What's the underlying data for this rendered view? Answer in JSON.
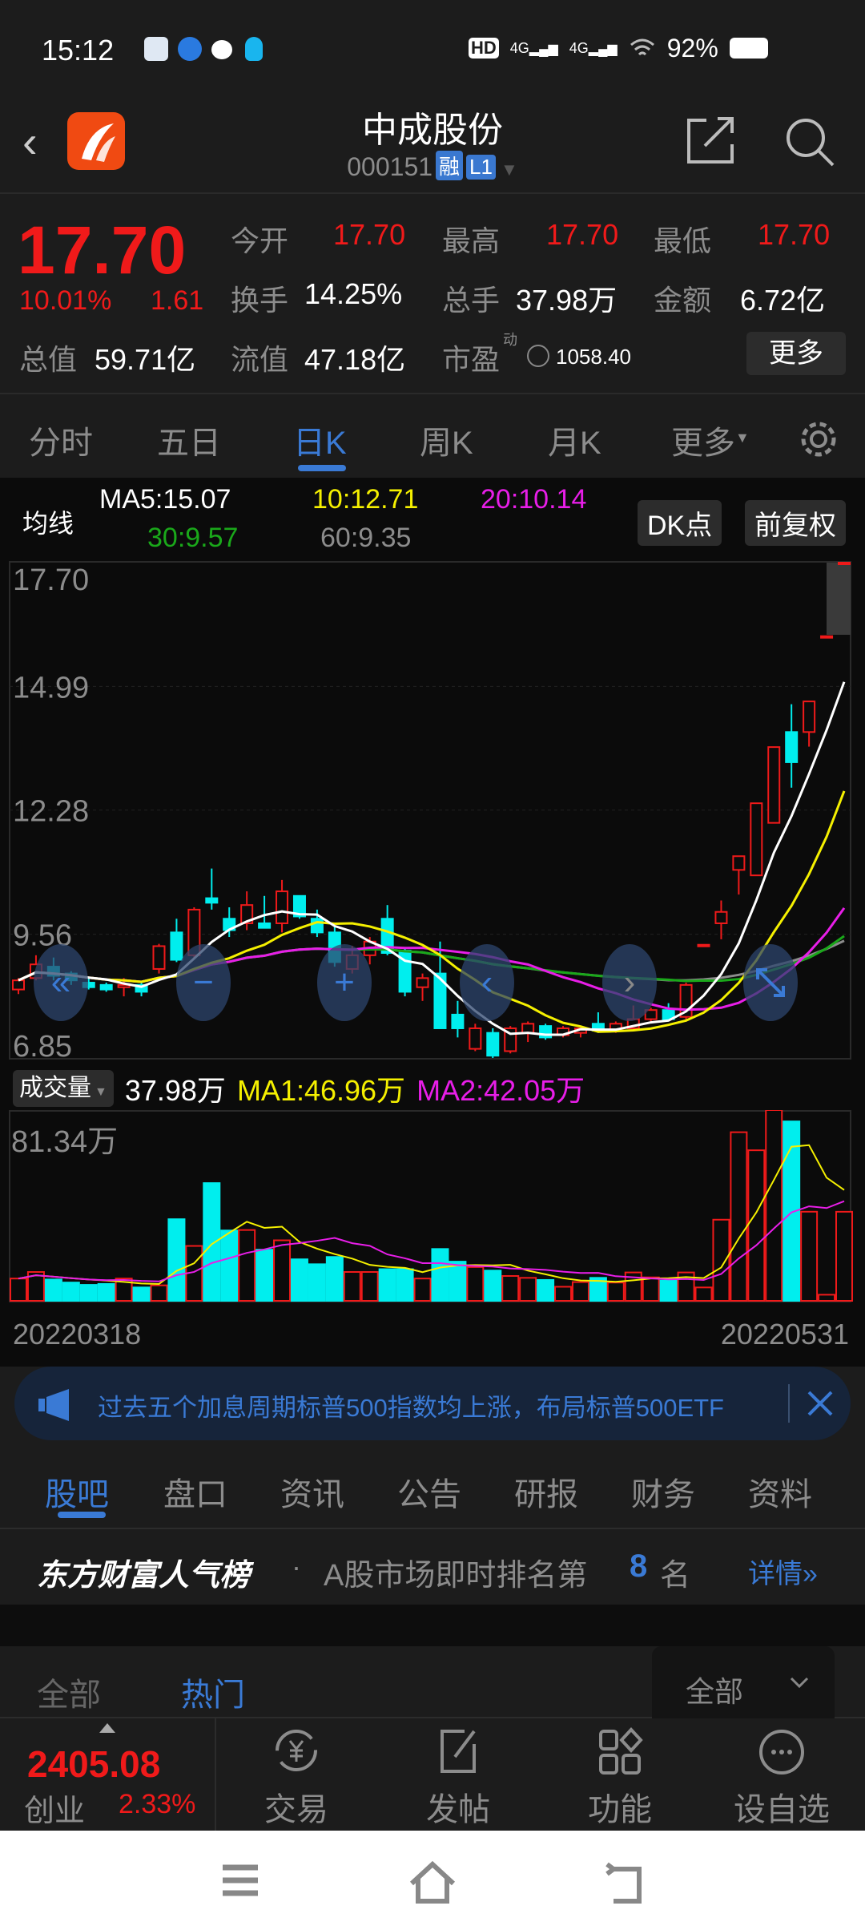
{
  "status_bar": {
    "time": "15:12",
    "battery": "92%",
    "net1": "4G",
    "net2": "4G",
    "hd": "HD"
  },
  "header": {
    "title": "中成股份",
    "code": "000151",
    "badge1": "融",
    "badge2": "L1"
  },
  "quote": {
    "price": "17.70",
    "change_pct": "10.01%",
    "change": "1.61",
    "open_label": "今开",
    "open": "17.70",
    "high_label": "最高",
    "high": "17.70",
    "low_label": "最低",
    "low": "17.70",
    "turnover_label": "换手",
    "turnover": "14.25%",
    "volume_label": "总手",
    "volume": "37.98万",
    "amount_label": "金额",
    "amount": "6.72亿",
    "mcap_label": "总值",
    "mcap": "59.71亿",
    "float_label": "流值",
    "float": "47.18亿",
    "pe_label": "市盈",
    "pe_sup": "动",
    "pe": "1058.40",
    "more": "更多"
  },
  "chart_tabs": [
    {
      "label": "分时"
    },
    {
      "label": "五日"
    },
    {
      "label": "日K"
    },
    {
      "label": "周K"
    },
    {
      "label": "月K"
    },
    {
      "label": "更多"
    }
  ],
  "ma_legend": {
    "label": "均线",
    "ma5": "MA5:15.07",
    "ma10": "10:12.71",
    "ma20": "20:10.14",
    "ma30": "30:9.57",
    "ma60": "60:9.35",
    "dk": "DK点",
    "adjust": "前复权"
  },
  "colors": {
    "up": "#f01a1a",
    "down": "#00eeee",
    "ma5": "#ffffff",
    "ma10": "#f5f000",
    "ma20": "#e81ee8",
    "ma30": "#1aa81a",
    "ma60": "#8c8c8c",
    "accent": "#3a7ad5"
  },
  "chart_data": {
    "type": "candlestick",
    "ylim": [
      6.85,
      17.7
    ],
    "y_ticks": [
      "17.70",
      "14.99",
      "12.28",
      "9.56",
      "6.85"
    ],
    "x_labels": [
      "20220318",
      "20220531"
    ],
    "candles": [
      [
        8.35,
        8.6,
        8.25,
        8.55
      ],
      [
        8.6,
        9.1,
        8.55,
        8.9
      ],
      [
        8.85,
        9.05,
        8.55,
        8.65
      ],
      [
        8.7,
        8.75,
        8.45,
        8.55
      ],
      [
        8.5,
        8.6,
        8.35,
        8.4
      ],
      [
        8.45,
        8.5,
        8.3,
        8.35
      ],
      [
        8.4,
        8.6,
        8.2,
        8.45
      ],
      [
        8.45,
        8.5,
        8.2,
        8.3
      ],
      [
        8.8,
        9.35,
        8.7,
        9.3
      ],
      [
        9.6,
        9.9,
        8.95,
        9.0
      ],
      [
        9.1,
        10.15,
        9.05,
        10.1
      ],
      [
        10.35,
        11.0,
        10.1,
        10.25
      ],
      [
        9.9,
        10.15,
        9.5,
        9.65
      ],
      [
        9.8,
        10.5,
        9.65,
        10.2
      ],
      [
        9.8,
        10.4,
        9.7,
        9.7
      ],
      [
        9.8,
        10.75,
        9.6,
        10.5
      ],
      [
        10.4,
        10.4,
        9.9,
        9.95
      ],
      [
        9.9,
        10.1,
        9.5,
        9.6
      ],
      [
        9.6,
        9.75,
        8.85,
        8.95
      ],
      [
        8.8,
        9.3,
        8.7,
        9.1
      ],
      [
        9.1,
        9.5,
        8.9,
        9.4
      ],
      [
        9.9,
        10.2,
        9.1,
        9.15
      ],
      [
        9.2,
        9.25,
        8.2,
        8.3
      ],
      [
        8.4,
        8.7,
        8.1,
        8.6
      ],
      [
        8.7,
        9.4,
        7.5,
        7.5
      ],
      [
        7.8,
        8.1,
        7.3,
        7.5
      ],
      [
        7.05,
        7.6,
        7.0,
        7.5
      ],
      [
        7.4,
        7.5,
        6.85,
        6.9
      ],
      [
        7.0,
        7.55,
        6.95,
        7.5
      ],
      [
        7.4,
        7.65,
        7.2,
        7.6
      ],
      [
        7.55,
        7.6,
        7.25,
        7.3
      ],
      [
        7.35,
        7.55,
        7.3,
        7.5
      ],
      [
        7.4,
        7.55,
        7.3,
        7.5
      ],
      [
        7.6,
        7.85,
        7.4,
        7.45
      ],
      [
        7.45,
        7.65,
        7.4,
        7.6
      ],
      [
        7.5,
        8.0,
        7.45,
        7.7
      ],
      [
        7.7,
        7.95,
        7.65,
        7.9
      ],
      [
        7.9,
        8.05,
        7.65,
        7.7
      ],
      [
        7.75,
        8.5,
        7.7,
        8.45
      ],
      [
        9.33,
        9.33,
        9.33,
        9.33
      ],
      [
        9.8,
        10.3,
        9.45,
        10.05
      ],
      [
        10.97,
        11.27,
        10.43,
        11.27
      ],
      [
        10.85,
        12.43,
        10.85,
        12.43
      ],
      [
        12.0,
        13.66,
        12.0,
        13.66
      ],
      [
        13.99,
        14.6,
        12.77,
        13.33
      ],
      [
        13.99,
        14.66,
        13.67,
        14.66
      ],
      [
        16.09,
        16.09,
        16.09,
        16.09
      ],
      [
        17.7,
        17.7,
        17.7,
        17.7
      ]
    ],
    "volume": {
      "label": "成交量",
      "current": "37.98万",
      "ma1": "MA1:46.96万",
      "ma2": "MA2:42.05万",
      "max_label": "81.34万",
      "max": 81.34,
      "unit": "万",
      "values": [
        9.5,
        12.3,
        9.1,
        7.8,
        6.8,
        7.2,
        9.5,
        5.7,
        6.6,
        34.8,
        23.4,
        50.2,
        30,
        30.2,
        21.8,
        25.8,
        17.7,
        15.6,
        18.7,
        12.3,
        12.3,
        13.5,
        13.5,
        9.5,
        22.1,
        16.7,
        14.4,
        12.9,
        10.6,
        9.8,
        8.9,
        6.0,
        8.0,
        9.8,
        7.8,
        12.1,
        10.0,
        8.6,
        12.1,
        5.7,
        34.6,
        71.9,
        64.2,
        81.34,
        76.5,
        38,
        2.6,
        37.98
      ]
    }
  },
  "banner": {
    "text": "过去五个加息周期标普500指数均上涨，布局标普500ETF"
  },
  "info_tabs": [
    {
      "label": "股吧"
    },
    {
      "label": "盘口"
    },
    {
      "label": "资讯"
    },
    {
      "label": "公告"
    },
    {
      "label": "研报"
    },
    {
      "label": "财务"
    },
    {
      "label": "资料"
    }
  ],
  "popularity": {
    "title": "东方财富人气榜",
    "dot": "·",
    "text": "A股市场即时排名第",
    "rank": "8",
    "suffix": "名",
    "link": "详情"
  },
  "filter": {
    "all": "全部",
    "hot": "热门",
    "dropdown": "全部"
  },
  "bottom_bar": {
    "index_value": "2405.08",
    "index_name": "创业",
    "index_change": "2.33%",
    "trade": "交易",
    "post": "发帖",
    "func": "功能",
    "watch": "设自选"
  }
}
